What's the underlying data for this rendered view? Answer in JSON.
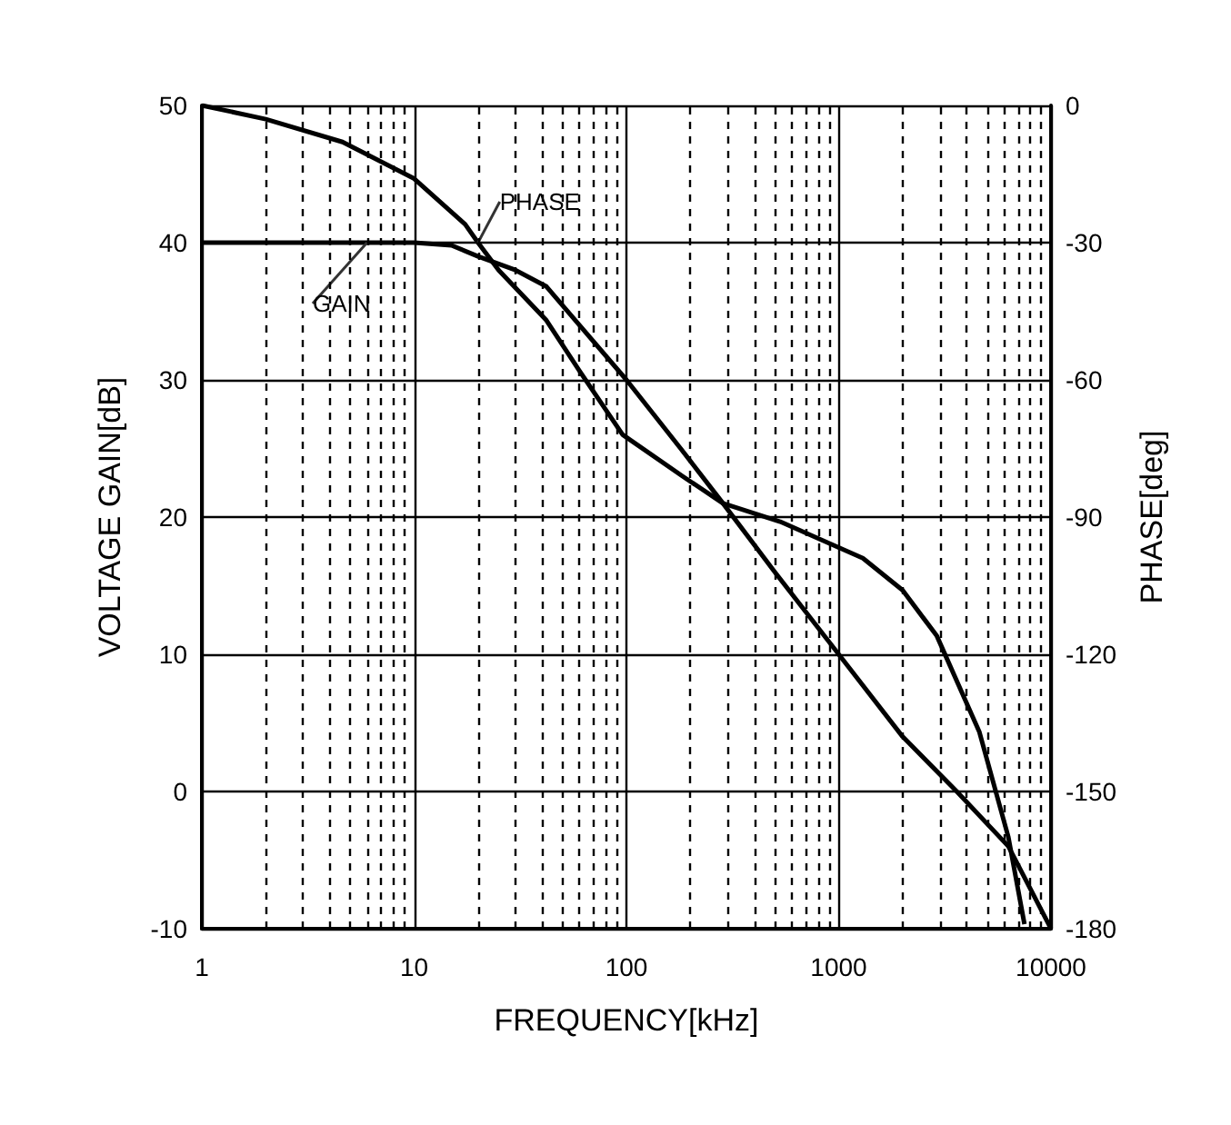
{
  "chart_data": {
    "type": "line",
    "xlabel": "FREQUENCY[kHz]",
    "ylabel": "VOLTAGE GAIN[dB]",
    "y2label": "PHASE[deg]",
    "log": "x",
    "grid": true,
    "legend": false,
    "marker": "none",
    "line_style": "solid",
    "xlim": [
      1,
      10000
    ],
    "xticks": [
      1,
      10,
      100,
      1000,
      10000
    ],
    "ylim": [
      -10,
      50
    ],
    "yticks": [
      -10,
      0,
      10,
      20,
      30,
      40,
      50
    ],
    "y2lim": [
      -180,
      0
    ],
    "y2ticks": [
      -180,
      -150,
      -120,
      -90,
      -60,
      -30,
      0
    ],
    "series": [
      {
        "name": "GAIN",
        "color": "#000000",
        "x": [
          1,
          6,
          10,
          15,
          20,
          30,
          42,
          60,
          100,
          180,
          285,
          500,
          1000,
          2000,
          3600,
          6300,
          10000
        ],
        "values": [
          40,
          40,
          40,
          39.8,
          39,
          38,
          36.8,
          34,
          30,
          25,
          21,
          16,
          10,
          4,
          0,
          -4,
          -10
        ]
      },
      {
        "name": "PHASE",
        "color": "#000000",
        "axis": "y2",
        "x": [
          1,
          2,
          4.6,
          10,
          17.4,
          20,
          25,
          42,
          60,
          96,
          183,
          285,
          530,
          930,
          1300,
          2000,
          2900,
          4600,
          6300,
          7500
        ],
        "values": [
          0,
          -3,
          -8,
          -16,
          -26,
          -30,
          -36,
          -47,
          -58,
          -72,
          -81,
          -87,
          -91,
          -96,
          -99,
          -106,
          -116,
          -137,
          -160,
          -179
        ]
      }
    ]
  }
}
